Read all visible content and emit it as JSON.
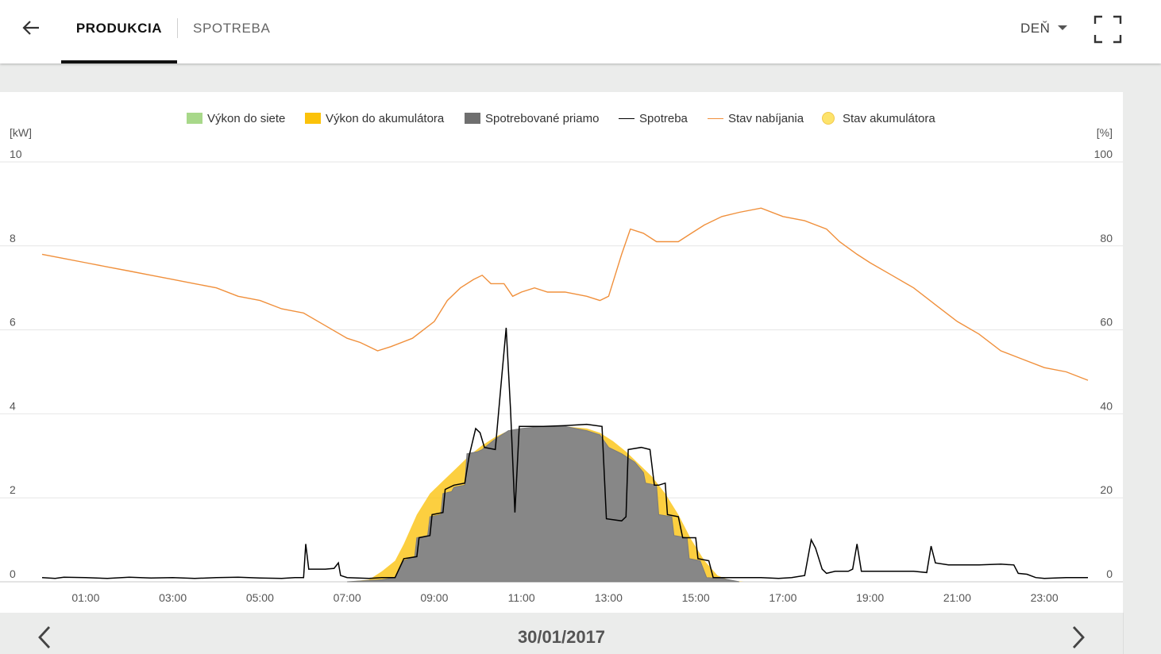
{
  "header": {
    "tabs": [
      {
        "label": "PRODUKCIA",
        "active": true
      },
      {
        "label": "SPOTREBA",
        "active": false
      }
    ],
    "period": "DEŇ"
  },
  "icons": {
    "back": "arrow-left-icon",
    "period_dropdown": "caret-down-icon",
    "fullscreen": "fullscreen-icon",
    "prev": "chevron-left-icon",
    "next": "chevron-right-icon"
  },
  "colors": {
    "grid_export": "#a8d88a",
    "battery_charge": "#fbc20a",
    "self_consumed": "#878787",
    "consumption": "#000000",
    "charge_state": "#f0903c",
    "battery_state": "#fde36b"
  },
  "chart_data": {
    "type": "area",
    "legend": [
      "Výkon do siete",
      "Výkon do akumulátora",
      "Spotrebované priamo",
      "Spotreba",
      "Stav nabíjania",
      "Stav akumulátora"
    ],
    "legend_position": "top",
    "grid": true,
    "y_left_label": "[kW]",
    "y_right_label": "[%]",
    "y_left_ticks": [
      "10",
      "8",
      "6",
      "4",
      "2",
      "0"
    ],
    "y_right_ticks": [
      "100",
      "80",
      "60",
      "40",
      "20",
      "0"
    ],
    "ylim_left": [
      0,
      10
    ],
    "ylim_right": [
      0,
      100
    ],
    "x_tick_labels": [
      "01:00",
      "03:00",
      "05:00",
      "07:00",
      "09:00",
      "11:00",
      "13:00",
      "15:00",
      "17:00",
      "19:00",
      "21:00",
      "23:00"
    ],
    "xlim_hours": [
      0,
      24
    ],
    "series": [
      {
        "name": "Výkon do akumulátora",
        "unit": "kW",
        "points": [
          [
            7.0,
            0
          ],
          [
            7.5,
            0.05
          ],
          [
            7.8,
            0.25
          ],
          [
            8.1,
            0.5
          ],
          [
            8.3,
            0.9
          ],
          [
            8.6,
            1.6
          ],
          [
            8.9,
            2.1
          ],
          [
            9.2,
            2.4
          ],
          [
            9.5,
            2.7
          ],
          [
            9.8,
            3.0
          ],
          [
            10.1,
            3.25
          ],
          [
            10.4,
            3.45
          ],
          [
            10.7,
            3.6
          ],
          [
            11.0,
            3.65
          ],
          [
            11.5,
            3.7
          ],
          [
            12.0,
            3.7
          ],
          [
            12.5,
            3.65
          ],
          [
            12.8,
            3.55
          ],
          [
            13.1,
            3.35
          ],
          [
            13.4,
            3.1
          ],
          [
            13.7,
            2.8
          ],
          [
            14.0,
            2.5
          ],
          [
            14.3,
            2.1
          ],
          [
            14.6,
            1.6
          ],
          [
            14.9,
            1.0
          ],
          [
            15.2,
            0.5
          ],
          [
            15.5,
            0.15
          ],
          [
            15.8,
            0.03
          ],
          [
            16.1,
            0
          ]
        ]
      },
      {
        "name": "Spotrebované priamo",
        "unit": "kW",
        "points": [
          [
            7.0,
            0
          ],
          [
            7.8,
            0.05
          ],
          [
            8.1,
            0.1
          ],
          [
            8.3,
            0.5
          ],
          [
            8.55,
            0.6
          ],
          [
            8.6,
            1.05
          ],
          [
            8.85,
            1.1
          ],
          [
            8.9,
            1.55
          ],
          [
            9.15,
            1.6
          ],
          [
            9.2,
            2.1
          ],
          [
            9.4,
            2.15
          ],
          [
            9.45,
            2.25
          ],
          [
            9.7,
            2.3
          ],
          [
            9.75,
            3.05
          ],
          [
            10.0,
            3.1
          ],
          [
            10.1,
            3.15
          ],
          [
            10.4,
            3.4
          ],
          [
            10.7,
            3.6
          ],
          [
            11.0,
            3.65
          ],
          [
            11.5,
            3.7
          ],
          [
            12.0,
            3.7
          ],
          [
            12.5,
            3.6
          ],
          [
            12.8,
            3.5
          ],
          [
            13.0,
            3.2
          ],
          [
            13.3,
            3.05
          ],
          [
            13.6,
            2.85
          ],
          [
            13.8,
            2.6
          ],
          [
            13.85,
            2.35
          ],
          [
            14.1,
            2.3
          ],
          [
            14.15,
            1.6
          ],
          [
            14.45,
            1.55
          ],
          [
            14.5,
            1.1
          ],
          [
            14.8,
            1.05
          ],
          [
            14.85,
            0.55
          ],
          [
            15.1,
            0.5
          ],
          [
            15.25,
            0.1
          ],
          [
            15.6,
            0.08
          ],
          [
            16.0,
            0
          ]
        ]
      },
      {
        "name": "Spotreba",
        "unit": "kW",
        "points": [
          [
            0.0,
            0.1
          ],
          [
            0.3,
            0.08
          ],
          [
            0.5,
            0.11
          ],
          [
            1.0,
            0.1
          ],
          [
            1.5,
            0.08
          ],
          [
            2.0,
            0.11
          ],
          [
            2.5,
            0.09
          ],
          [
            3.0,
            0.1
          ],
          [
            3.5,
            0.08
          ],
          [
            4.0,
            0.1
          ],
          [
            4.5,
            0.11
          ],
          [
            5.0,
            0.09
          ],
          [
            5.5,
            0.08
          ],
          [
            5.8,
            0.1
          ],
          [
            6.0,
            0.1
          ],
          [
            6.05,
            0.9
          ],
          [
            6.12,
            0.3
          ],
          [
            6.5,
            0.3
          ],
          [
            6.7,
            0.32
          ],
          [
            6.8,
            0.45
          ],
          [
            6.85,
            0.15
          ],
          [
            7.0,
            0.1
          ],
          [
            7.5,
            0.08
          ],
          [
            7.8,
            0.1
          ],
          [
            8.1,
            0.1
          ],
          [
            8.3,
            0.55
          ],
          [
            8.6,
            0.6
          ],
          [
            8.65,
            1.05
          ],
          [
            8.9,
            1.1
          ],
          [
            8.95,
            1.6
          ],
          [
            9.2,
            1.65
          ],
          [
            9.25,
            2.2
          ],
          [
            9.45,
            2.3
          ],
          [
            9.7,
            2.35
          ],
          [
            9.8,
            3.0
          ],
          [
            9.95,
            3.65
          ],
          [
            10.05,
            3.55
          ],
          [
            10.15,
            3.2
          ],
          [
            10.4,
            3.15
          ],
          [
            10.55,
            4.9
          ],
          [
            10.65,
            6.05
          ],
          [
            10.75,
            4.1
          ],
          [
            10.85,
            1.65
          ],
          [
            10.95,
            3.7
          ],
          [
            11.5,
            3.7
          ],
          [
            12.0,
            3.72
          ],
          [
            12.5,
            3.75
          ],
          [
            12.85,
            3.7
          ],
          [
            12.95,
            1.5
          ],
          [
            13.3,
            1.45
          ],
          [
            13.4,
            1.55
          ],
          [
            13.45,
            3.15
          ],
          [
            13.75,
            3.2
          ],
          [
            13.95,
            3.15
          ],
          [
            14.05,
            2.3
          ],
          [
            14.15,
            2.3
          ],
          [
            14.3,
            2.35
          ],
          [
            14.35,
            1.6
          ],
          [
            14.6,
            1.55
          ],
          [
            14.7,
            1.05
          ],
          [
            15.0,
            1.05
          ],
          [
            15.05,
            0.55
          ],
          [
            15.3,
            0.5
          ],
          [
            15.4,
            0.1
          ],
          [
            16.0,
            0.1
          ],
          [
            16.5,
            0.1
          ],
          [
            16.9,
            0.08
          ],
          [
            17.2,
            0.1
          ],
          [
            17.5,
            0.15
          ],
          [
            17.65,
            1.0
          ],
          [
            17.75,
            0.8
          ],
          [
            17.9,
            0.3
          ],
          [
            18.0,
            0.2
          ],
          [
            18.2,
            0.25
          ],
          [
            18.5,
            0.25
          ],
          [
            18.6,
            0.3
          ],
          [
            18.7,
            0.9
          ],
          [
            18.8,
            0.25
          ],
          [
            19.0,
            0.25
          ],
          [
            19.5,
            0.25
          ],
          [
            20.0,
            0.25
          ],
          [
            20.3,
            0.22
          ],
          [
            20.4,
            0.85
          ],
          [
            20.5,
            0.45
          ],
          [
            20.8,
            0.4
          ],
          [
            21.0,
            0.4
          ],
          [
            21.5,
            0.4
          ],
          [
            22.0,
            0.42
          ],
          [
            22.3,
            0.4
          ],
          [
            22.4,
            0.2
          ],
          [
            22.6,
            0.18
          ],
          [
            22.8,
            0.1
          ],
          [
            23.0,
            0.08
          ],
          [
            23.5,
            0.1
          ],
          [
            24.0,
            0.1
          ]
        ]
      },
      {
        "name": "Stav nabíjania",
        "unit": "%",
        "points": [
          [
            0.0,
            78
          ],
          [
            0.5,
            77
          ],
          [
            1.0,
            76
          ],
          [
            1.5,
            75
          ],
          [
            2.0,
            74
          ],
          [
            2.5,
            73
          ],
          [
            3.0,
            72
          ],
          [
            3.5,
            71
          ],
          [
            4.0,
            70
          ],
          [
            4.5,
            68
          ],
          [
            5.0,
            67
          ],
          [
            5.5,
            65
          ],
          [
            6.0,
            64
          ],
          [
            6.5,
            61
          ],
          [
            7.0,
            58
          ],
          [
            7.3,
            57
          ],
          [
            7.5,
            56
          ],
          [
            7.7,
            55
          ],
          [
            8.0,
            56
          ],
          [
            8.5,
            58
          ],
          [
            9.0,
            62
          ],
          [
            9.3,
            67
          ],
          [
            9.6,
            70
          ],
          [
            9.9,
            72
          ],
          [
            10.1,
            73
          ],
          [
            10.3,
            71
          ],
          [
            10.6,
            71
          ],
          [
            10.8,
            68
          ],
          [
            11.0,
            69
          ],
          [
            11.3,
            70
          ],
          [
            11.6,
            69
          ],
          [
            12.0,
            69
          ],
          [
            12.5,
            68
          ],
          [
            12.8,
            67
          ],
          [
            13.0,
            68
          ],
          [
            13.3,
            78
          ],
          [
            13.5,
            84
          ],
          [
            13.8,
            83
          ],
          [
            14.1,
            81
          ],
          [
            14.6,
            81
          ],
          [
            14.9,
            83
          ],
          [
            15.2,
            85
          ],
          [
            15.6,
            87
          ],
          [
            16.0,
            88
          ],
          [
            16.5,
            89
          ],
          [
            17.0,
            87
          ],
          [
            17.5,
            86
          ],
          [
            18.0,
            84
          ],
          [
            18.3,
            81
          ],
          [
            18.7,
            78
          ],
          [
            19.0,
            76
          ],
          [
            19.5,
            73
          ],
          [
            20.0,
            70
          ],
          [
            20.5,
            66
          ],
          [
            21.0,
            62
          ],
          [
            21.5,
            59
          ],
          [
            22.0,
            55
          ],
          [
            22.5,
            53
          ],
          [
            23.0,
            51
          ],
          [
            23.5,
            50
          ],
          [
            24.0,
            48
          ]
        ]
      },
      {
        "name": "Výkon do siete",
        "unit": "kW",
        "values": []
      },
      {
        "name": "Stav akumulátora",
        "unit": "%",
        "values": []
      }
    ]
  },
  "footer": {
    "date": "30/01/2017"
  }
}
